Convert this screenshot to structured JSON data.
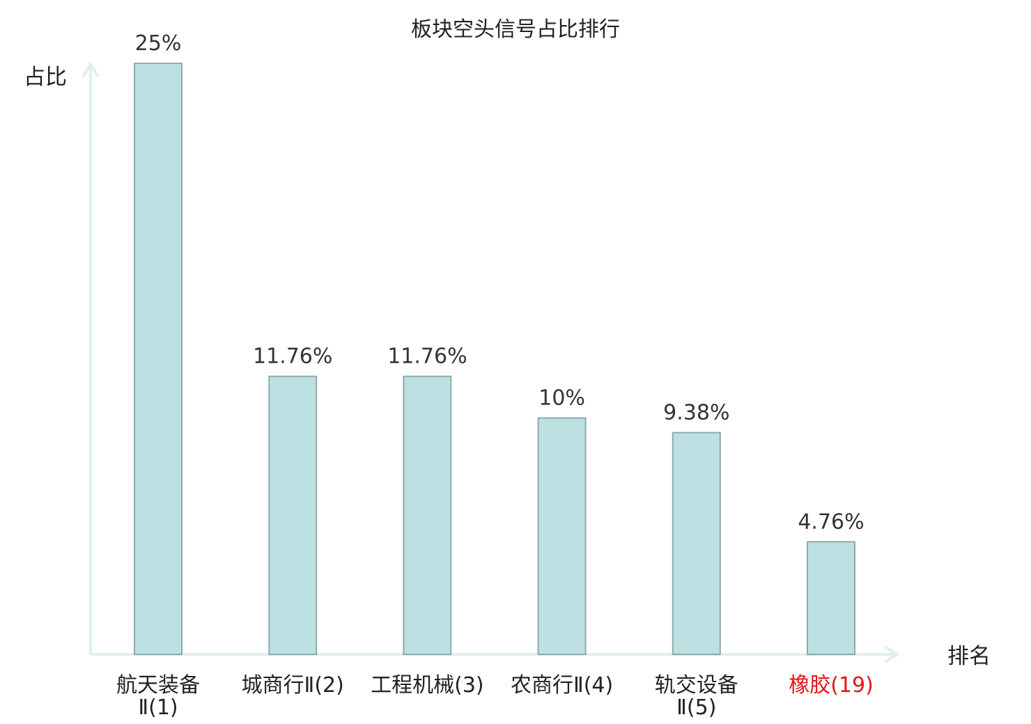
{
  "chart_data": {
    "type": "bar",
    "title": "板块空头信号占比排行",
    "ylabel": "占比",
    "xlabel": "排名",
    "ylim": [
      0,
      25
    ],
    "categories": [
      [
        "航天装备",
        "Ⅱ(1)"
      ],
      [
        "城商行Ⅱ(2)"
      ],
      [
        "工程机械(3)"
      ],
      [
        "农商行Ⅱ(4)"
      ],
      [
        "轨交设备",
        "Ⅱ(5)"
      ],
      [
        "橡胶(19)"
      ]
    ],
    "values": [
      25,
      11.76,
      11.76,
      10,
      9.38,
      4.76
    ],
    "value_labels": [
      "25%",
      "11.76%",
      "11.76%",
      "10%",
      "9.38%",
      "4.76%"
    ],
    "highlight_index": 5,
    "colors": {
      "bar_fill": "#bde0e2",
      "bar_stroke": "#8fa9ab",
      "axis": "#dff0ee",
      "text": "#222222",
      "highlight_text": "#e0151b"
    }
  }
}
